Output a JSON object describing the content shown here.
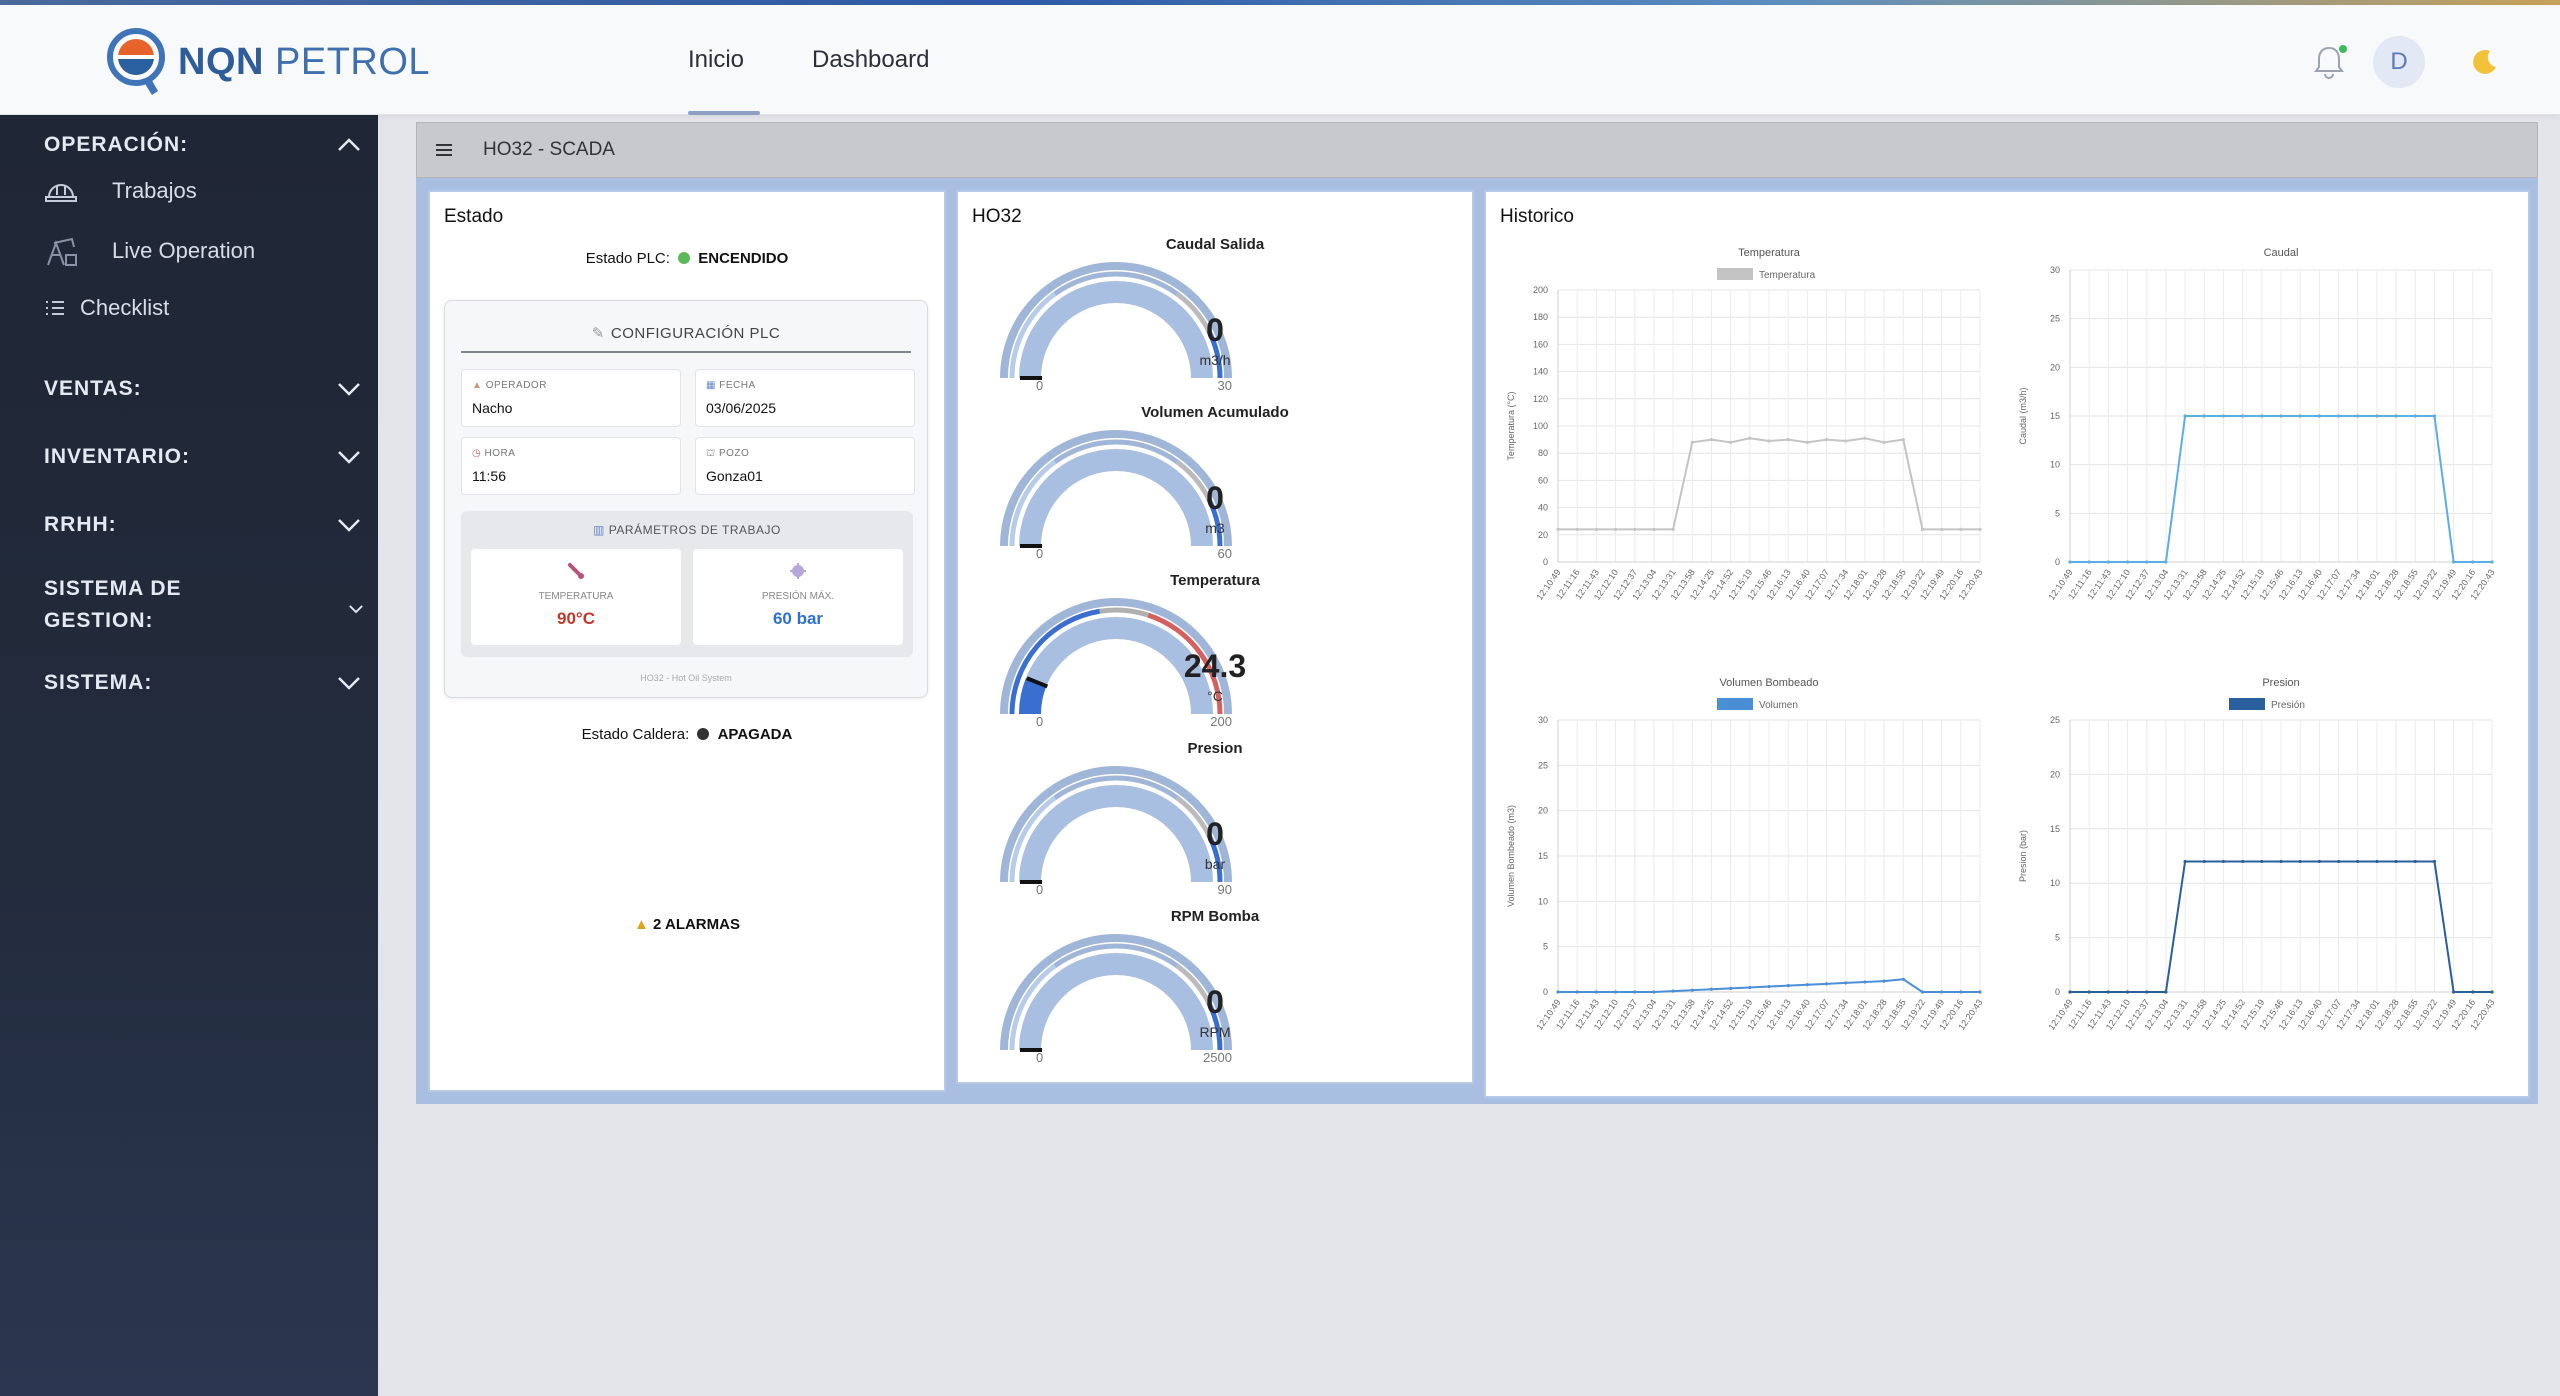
{
  "header": {
    "brand_bold": "NQN",
    "brand_light": "PETROL",
    "nav": [
      {
        "label": "Inicio",
        "active": true
      },
      {
        "label": "Dashboard",
        "active": false
      }
    ],
    "avatar_initial": "D",
    "icons": [
      "bell-icon",
      "moon-icon"
    ],
    "notification_dot_color": "#3dbb58"
  },
  "sidebar": {
    "sections": [
      {
        "label": "OPERACIÓN:",
        "expanded": true,
        "items": [
          {
            "label": "Trabajos",
            "icon": "hard-hat-icon"
          },
          {
            "label": "Live Operation",
            "icon": "oil-pump-icon"
          },
          {
            "label": "Checklist",
            "icon": "list-icon"
          }
        ]
      },
      {
        "label": "VENTAS:",
        "expanded": false
      },
      {
        "label": "INVENTARIO:",
        "expanded": false
      },
      {
        "label": "RRHH:",
        "expanded": false
      },
      {
        "label": "SISTEMA DE",
        "label2": "GESTION:",
        "expanded": false
      },
      {
        "label": "SISTEMA:",
        "expanded": false
      }
    ]
  },
  "main": {
    "title": "HO32 - SCADA",
    "estado": {
      "title": "Estado",
      "plc_label": "Estado PLC:",
      "plc_value": "ENCENDIDO",
      "plc_color": "#5cb85c",
      "config_title": "CONFIGURACIÓN PLC",
      "fields": [
        {
          "key": "OPERADOR",
          "value": "Nacho"
        },
        {
          "key": "FECHA",
          "value": "03/06/2025"
        },
        {
          "key": "HORA",
          "value": "11:56"
        },
        {
          "key": "POZO",
          "value": "Gonza01"
        }
      ],
      "params_title": "PARÁMETROS DE TRABAJO",
      "params": [
        {
          "key": "TEMPERATURA",
          "value": "90°C",
          "color": "#c0392b"
        },
        {
          "key": "PRESIÓN MÁX.",
          "value": "60 bar",
          "color": "#2f6fd0"
        }
      ],
      "config_footer": "HO32 - Hot Oil System",
      "caldera_label": "Estado Caldera:",
      "caldera_value": "APAGADA",
      "caldera_color": "#333333",
      "alarms": "2 ALARMAS"
    },
    "ho32": {
      "title": "HO32",
      "gauges": [
        {
          "title": "Caudal Salida",
          "value": "0",
          "unit": "m3/h",
          "min": "0",
          "max": "30",
          "num": 0,
          "lo": 0,
          "hi": 30
        },
        {
          "title": "Volumen Acumulado",
          "value": "0",
          "unit": "m3",
          "min": "0",
          "max": "60",
          "num": 0,
          "lo": 0,
          "hi": 60
        },
        {
          "title": "Temperatura",
          "value": "24.3",
          "unit": "°C",
          "min": "0",
          "max": "200",
          "num": 24.3,
          "lo": 0,
          "hi": 200
        },
        {
          "title": "Presion",
          "value": "0",
          "unit": "bar",
          "min": "0",
          "max": "90",
          "num": 0,
          "lo": 0,
          "hi": 90
        },
        {
          "title": "RPM Bomba",
          "value": "0",
          "unit": "RPM",
          "min": "0",
          "max": "2500",
          "num": 0,
          "lo": 0,
          "hi": 2500
        }
      ]
    },
    "historico": {
      "title": "Historico"
    }
  },
  "chart_data": [
    {
      "type": "line",
      "title": "Temperatura",
      "ylabel": "Temperatura (°C)",
      "legend": "Temperatura",
      "color": "#c4c4c4",
      "ylim": [
        0,
        200
      ],
      "yticks": [
        "0",
        "20",
        "40",
        "60",
        "80",
        "100",
        "120",
        "140",
        "160",
        "180",
        "200"
      ],
      "x": [
        "12:10:49",
        "12:11:16",
        "12:11:43",
        "12:12:10",
        "12:12:37",
        "12:13:04",
        "12:13:31",
        "12:13:58",
        "12:14:25",
        "12:14:52",
        "12:15:19",
        "12:15:46",
        "12:16:13",
        "12:16:40",
        "12:17:07",
        "12:17:34",
        "12:18:01",
        "12:18:28",
        "12:18:55",
        "12:19:22",
        "12:19:49",
        "12:20:16",
        "12:20:43"
      ],
      "values": [
        24,
        24,
        24,
        24,
        24,
        24,
        24,
        88,
        90,
        88,
        91,
        89,
        90,
        88,
        90,
        89,
        91,
        88,
        90,
        24,
        24,
        24,
        24
      ]
    },
    {
      "type": "line",
      "title": "Caudal",
      "ylabel": "Caudal (m3/h)",
      "color": "#5aaee6",
      "ylim": [
        0,
        30
      ],
      "yticks": [
        "0",
        "5",
        "10",
        "15",
        "20",
        "25",
        "30"
      ],
      "x": [
        "12:10:49",
        "12:11:16",
        "12:11:43",
        "12:12:10",
        "12:12:37",
        "12:13:04",
        "12:13:31",
        "12:13:58",
        "12:14:25",
        "12:14:52",
        "12:15:19",
        "12:15:46",
        "12:16:13",
        "12:16:40",
        "12:17:07",
        "12:17:34",
        "12:18:01",
        "12:18:28",
        "12:18:55",
        "12:19:22",
        "12:19:49",
        "12:20:16",
        "12:20:43"
      ],
      "values": [
        0,
        0,
        0,
        0,
        0,
        0,
        15,
        15,
        15,
        15,
        15,
        15,
        15,
        15,
        15,
        15,
        15,
        15,
        15,
        15,
        0,
        0,
        0
      ]
    },
    {
      "type": "line",
      "title": "Volumen Bombeado",
      "ylabel": "Volumen Bombeado (m3)",
      "legend": "Volumen",
      "color": "#4a8fd6",
      "ylim": [
        0,
        30
      ],
      "yticks": [
        "0",
        "5",
        "10",
        "15",
        "20",
        "25",
        "30"
      ],
      "x": [
        "12:10:49",
        "12:11:16",
        "12:11:43",
        "12:12:10",
        "12:12:37",
        "12:13:04",
        "12:13:31",
        "12:13:58",
        "12:14:25",
        "12:14:52",
        "12:15:19",
        "12:15:46",
        "12:16:13",
        "12:16:40",
        "12:17:07",
        "12:17:34",
        "12:18:01",
        "12:18:28",
        "12:18:55",
        "12:19:22",
        "12:19:49",
        "12:20:16",
        "12:20:43"
      ],
      "values": [
        0,
        0,
        0,
        0,
        0,
        0,
        0.1,
        0.2,
        0.3,
        0.4,
        0.5,
        0.6,
        0.7,
        0.8,
        0.9,
        1.0,
        1.1,
        1.2,
        1.4,
        0,
        0,
        0,
        0
      ]
    },
    {
      "type": "line",
      "title": "Presion",
      "ylabel": "Presion (bar)",
      "legend": "Presión",
      "color": "#2a5f9e",
      "ylim": [
        0,
        25
      ],
      "yticks": [
        "0",
        "5",
        "10",
        "15",
        "20",
        "25"
      ],
      "x": [
        "12:10:49",
        "12:11:16",
        "12:11:43",
        "12:12:10",
        "12:12:37",
        "12:13:04",
        "12:13:31",
        "12:13:58",
        "12:14:25",
        "12:14:52",
        "12:15:19",
        "12:15:46",
        "12:16:13",
        "12:16:40",
        "12:17:07",
        "12:17:34",
        "12:18:01",
        "12:18:28",
        "12:18:55",
        "12:19:22",
        "12:19:49",
        "12:20:16",
        "12:20:43"
      ],
      "values": [
        0,
        0,
        0,
        0,
        0,
        0,
        12,
        12,
        12,
        12,
        12,
        12,
        12,
        12,
        12,
        12,
        12,
        12,
        12,
        12,
        0,
        0,
        0
      ]
    }
  ]
}
